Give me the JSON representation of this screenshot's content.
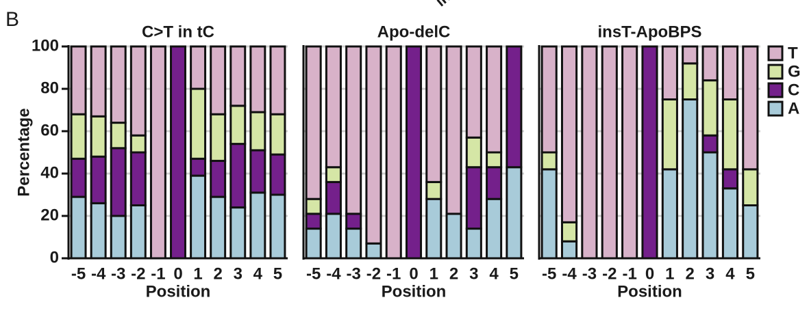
{
  "panel_label": "B",
  "annotation": "in",
  "chart_data": [
    {
      "type": "stacked_bar",
      "title": "C>T in tC",
      "xlabel": "Position",
      "ylabel": "Percentage",
      "categories": [
        "-5",
        "-4",
        "-3",
        "-2",
        "-1",
        "0",
        "1",
        "2",
        "3",
        "4",
        "5"
      ],
      "ylim": [
        0,
        100
      ],
      "yticks": [
        0,
        20,
        40,
        60,
        80,
        100
      ],
      "ytick_labels": true,
      "grid": true,
      "series": [
        {
          "name": "A",
          "color": "#a8cbd9",
          "values": [
            29,
            26,
            20,
            25,
            0,
            0,
            39,
            29,
            24,
            31,
            30
          ]
        },
        {
          "name": "C",
          "color": "#74208b",
          "values": [
            18,
            22,
            32,
            25,
            0,
            100,
            8,
            17,
            30,
            20,
            19
          ]
        },
        {
          "name": "G",
          "color": "#d5e6a6",
          "values": [
            21,
            19,
            12,
            8,
            0,
            0,
            33,
            22,
            18,
            18,
            19
          ]
        },
        {
          "name": "T",
          "color": "#d8b2c9",
          "values": [
            32,
            33,
            36,
            42,
            100,
            0,
            20,
            32,
            28,
            31,
            32
          ]
        }
      ]
    },
    {
      "type": "stacked_bar",
      "title": "Apo-delC",
      "xlabel": "Position",
      "categories": [
        "-5",
        "-4",
        "-3",
        "-2",
        "-1",
        "0",
        "1",
        "2",
        "3",
        "4",
        "5"
      ],
      "ylim": [
        0,
        100
      ],
      "yticks": [
        0,
        20,
        40,
        60,
        80,
        100
      ],
      "ytick_labels": false,
      "grid": true,
      "series": [
        {
          "name": "A",
          "color": "#a8cbd9",
          "values": [
            14,
            21,
            14,
            7,
            0,
            0,
            28,
            21,
            14,
            28,
            43
          ]
        },
        {
          "name": "C",
          "color": "#74208b",
          "values": [
            7,
            15,
            7,
            0,
            0,
            100,
            0,
            0,
            29,
            15,
            57
          ]
        },
        {
          "name": "G",
          "color": "#d5e6a6",
          "values": [
            7,
            7,
            0,
            0,
            0,
            0,
            8,
            0,
            14,
            7,
            0
          ]
        },
        {
          "name": "T",
          "color": "#d8b2c9",
          "values": [
            72,
            57,
            79,
            93,
            100,
            0,
            64,
            79,
            43,
            50,
            0
          ]
        }
      ]
    },
    {
      "type": "stacked_bar",
      "title": "insT-ApoBPS",
      "xlabel": "Position",
      "categories": [
        "-5",
        "-4",
        "-3",
        "-2",
        "-1",
        "0",
        "1",
        "2",
        "3",
        "4",
        "5"
      ],
      "ylim": [
        0,
        100
      ],
      "yticks": [
        0,
        20,
        40,
        60,
        80,
        100
      ],
      "ytick_labels": false,
      "grid": true,
      "legend": "right",
      "series": [
        {
          "name": "A",
          "color": "#a8cbd9",
          "values": [
            42,
            8,
            0,
            0,
            0,
            0,
            42,
            75,
            50,
            33,
            25
          ]
        },
        {
          "name": "C",
          "color": "#74208b",
          "values": [
            0,
            0,
            0,
            0,
            0,
            100,
            0,
            0,
            8,
            9,
            0
          ]
        },
        {
          "name": "G",
          "color": "#d5e6a6",
          "values": [
            8,
            9,
            0,
            0,
            0,
            0,
            33,
            17,
            26,
            33,
            17
          ]
        },
        {
          "name": "T",
          "color": "#d8b2c9",
          "values": [
            50,
            83,
            100,
            100,
            100,
            0,
            25,
            8,
            16,
            25,
            58
          ]
        }
      ]
    }
  ]
}
